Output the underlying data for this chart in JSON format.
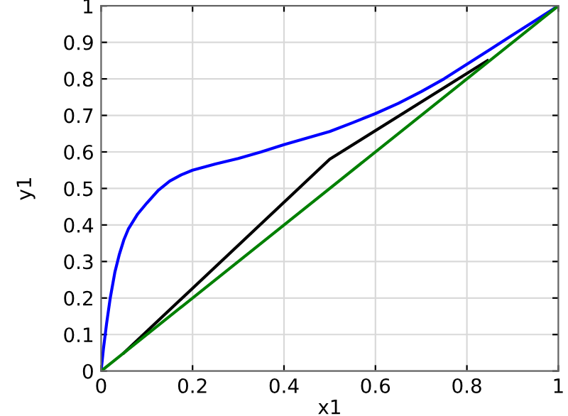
{
  "chart_data": {
    "type": "line",
    "xlabel": "x1",
    "ylabel": "y1",
    "series": [
      {
        "color": "#0000ff",
        "x": [
          0,
          0.005,
          0.012,
          0.02,
          0.03,
          0.04,
          0.05,
          0.06,
          0.08,
          0.1,
          0.125,
          0.15,
          0.175,
          0.2,
          0.25,
          0.3,
          0.35,
          0.4,
          0.45,
          0.5,
          0.55,
          0.6,
          0.65,
          0.7,
          0.75,
          0.8,
          0.85,
          0.9,
          0.95,
          1
        ],
        "values": [
          0,
          0.06,
          0.13,
          0.2,
          0.27,
          0.32,
          0.36,
          0.39,
          0.43,
          0.46,
          0.495,
          0.52,
          0.537,
          0.55,
          0.567,
          0.582,
          0.6,
          0.62,
          0.638,
          0.656,
          0.68,
          0.705,
          0.733,
          0.765,
          0.8,
          0.84,
          0.88,
          0.92,
          0.96,
          1
        ]
      },
      {
        "color": "#000000",
        "x": [
          0.05,
          0.5,
          0.845
        ],
        "values": [
          0.05,
          0.58,
          0.85
        ]
      },
      {
        "color": "#008000",
        "x": [
          0,
          1
        ],
        "values": [
          0,
          1
        ]
      }
    ],
    "xlim": [
      0,
      1
    ],
    "ylim": [
      0,
      1
    ],
    "xticks": [
      0,
      0.2,
      0.4,
      0.6,
      0.8,
      1
    ],
    "yticks": [
      0,
      0.1,
      0.2,
      0.3,
      0.4,
      0.5,
      0.6,
      0.7,
      0.8,
      0.9,
      1
    ],
    "grid": true,
    "legend": false,
    "marker": "none",
    "line_style": "solid"
  }
}
